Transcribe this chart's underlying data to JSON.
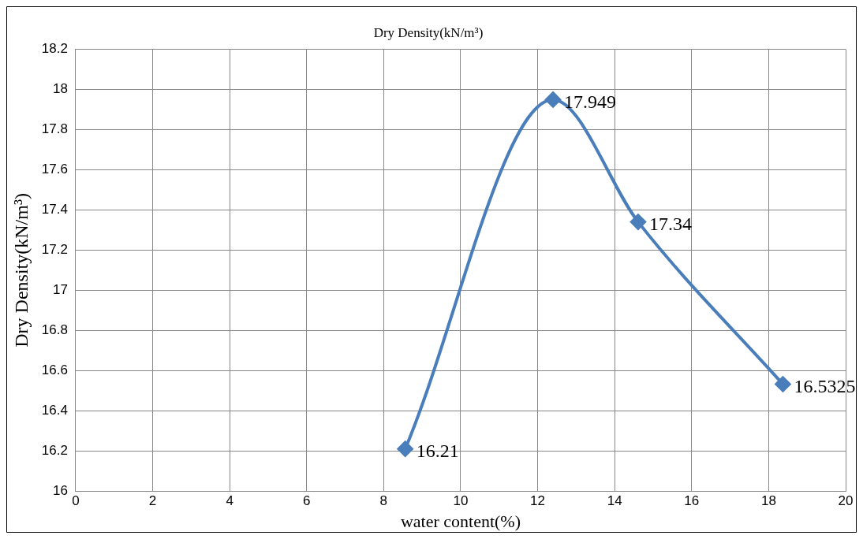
{
  "chart_data": {
    "type": "line",
    "title": "Dry Density(kN/m³)",
    "xlabel": "water content(%)",
    "ylabel": "Dry Density(kN/m³)",
    "x": [
      8.56,
      12.4,
      14.61,
      18.37
    ],
    "series": [
      {
        "color": "#4a7ebb",
        "values": [
          16.21,
          17.949,
          17.34,
          16.5325
        ]
      }
    ],
    "xlim": [
      0,
      20
    ],
    "xticks": [
      0,
      2,
      4,
      6,
      8,
      10,
      12,
      14,
      16,
      18,
      20
    ],
    "ylim": [
      16,
      18.2
    ],
    "yticks": [
      16,
      16.2,
      16.4,
      16.6,
      16.8,
      17,
      17.2,
      17.4,
      17.6,
      17.8,
      18,
      18.2
    ],
    "grid": true,
    "legend": false,
    "marker": "diamond",
    "line_style": "solid",
    "data_labels": true
  }
}
